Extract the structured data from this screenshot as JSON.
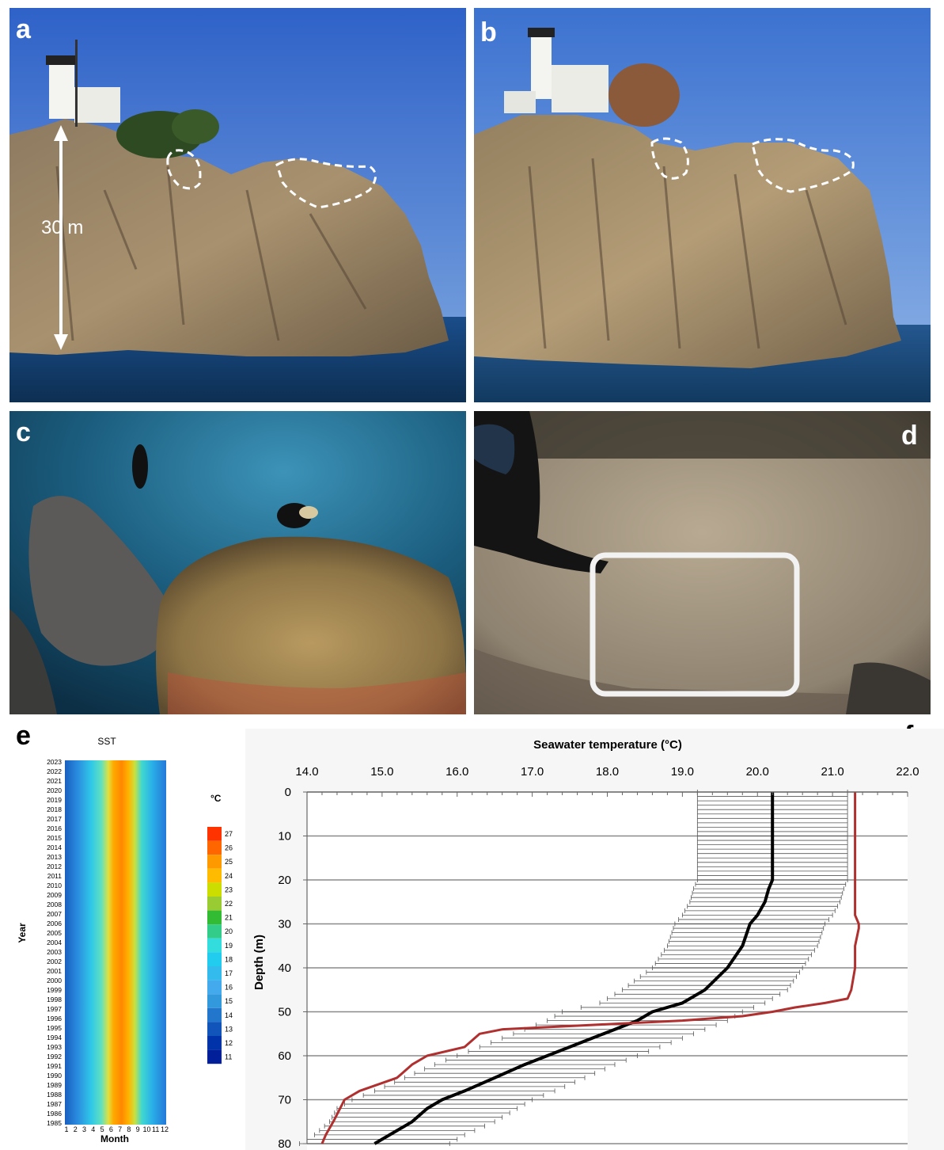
{
  "panels": {
    "a": {
      "label": "a",
      "annotation": "30 m"
    },
    "b": {
      "label": "b"
    },
    "c": {
      "label": "c"
    },
    "d": {
      "label": "d"
    },
    "e": {
      "label": "e"
    },
    "f": {
      "label": "f"
    }
  },
  "heatmap": {
    "title": "SST",
    "xlabel": "Month",
    "ylabel": "Year",
    "colorbar_unit": "°C",
    "colorbar_ticks": [
      "27",
      "26",
      "25",
      "24",
      "23",
      "22",
      "21",
      "20",
      "19",
      "18",
      "17",
      "16",
      "15",
      "14",
      "13",
      "12",
      "11"
    ],
    "colors": [
      "#ff3300",
      "#ff6600",
      "#ff9900",
      "#ffbb00",
      "#ccdd00",
      "#99cc33",
      "#33bb33",
      "#33cc88",
      "#33dddd",
      "#22ccee",
      "#33bbee",
      "#44aaee",
      "#3399dd",
      "#2277cc",
      "#1155bb",
      "#0033aa",
      "#001f99"
    ]
  },
  "chart_data": {
    "type": "line",
    "xlabel": "Seawater temperature (°C)",
    "ylabel": "Depth (m)",
    "xlim": [
      14.0,
      22.0
    ],
    "ylim": [
      0,
      80
    ],
    "x_ticks": [
      "14.0",
      "15.0",
      "16.0",
      "17.0",
      "18.0",
      "19.0",
      "20.0",
      "21.0",
      "22.0"
    ],
    "y_ticks": [
      "0",
      "10",
      "20",
      "30",
      "40",
      "50",
      "60",
      "70",
      "80"
    ],
    "grid": true,
    "series": [
      {
        "color": "#000000",
        "depth": [
          0,
          10,
          20,
          22,
          25,
          28,
          30,
          35,
          40,
          45,
          48,
          50,
          52,
          54,
          56,
          58,
          60,
          62,
          65,
          68,
          70,
          72,
          75,
          78,
          80
        ],
        "temperature": [
          20.2,
          20.2,
          20.2,
          20.15,
          20.1,
          20.0,
          19.9,
          19.8,
          19.6,
          19.3,
          19.0,
          18.6,
          18.4,
          18.1,
          17.8,
          17.5,
          17.2,
          16.9,
          16.5,
          16.1,
          15.8,
          15.6,
          15.4,
          15.1,
          14.9
        ],
        "error": [
          1.0,
          1.0,
          1.0,
          1.0,
          1.0,
          1.0,
          1.0,
          1.0,
          1.0,
          1.1,
          1.1,
          1.2,
          1.2,
          1.2,
          1.2,
          1.2,
          1.2,
          1.2,
          1.2,
          1.2,
          1.2,
          1.2,
          1.1,
          1.0,
          1.0
        ]
      },
      {
        "color": "#b03030",
        "depth": [
          0,
          10,
          20,
          25,
          28,
          30,
          31,
          35,
          40,
          45,
          47,
          48,
          49,
          50,
          51,
          52,
          52.5,
          53,
          53.5,
          54,
          55,
          58,
          60,
          62,
          65,
          68,
          70,
          75,
          78,
          80
        ],
        "temperature": [
          21.3,
          21.3,
          21.3,
          21.3,
          21.3,
          21.35,
          21.35,
          21.3,
          21.3,
          21.25,
          21.2,
          20.9,
          20.5,
          20.2,
          19.8,
          19.0,
          18.4,
          17.8,
          17.2,
          16.6,
          16.3,
          16.1,
          15.6,
          15.4,
          15.2,
          14.7,
          14.5,
          14.35,
          14.25,
          14.2
        ]
      }
    ]
  }
}
